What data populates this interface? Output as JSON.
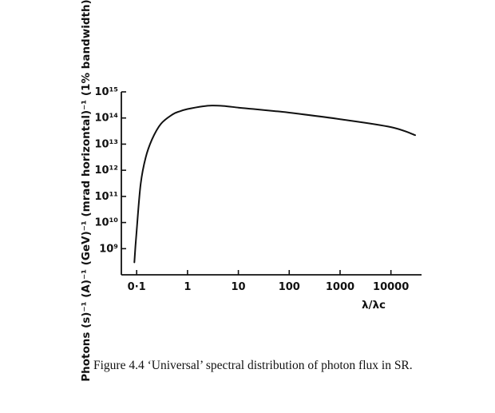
{
  "chart_data": {
    "type": "line",
    "title": "",
    "xlabel": "λ/λc",
    "ylabel": "Photons (s)⁻¹ (A)⁻¹ (GeV)⁻¹ (mrad horizontal)⁻¹ (1% bandwidth)⁻¹",
    "x_scale": "log",
    "y_scale": "log",
    "xlim": [
      0.05,
      40000
    ],
    "ylim": [
      100000000.0,
      1000000000000000.0
    ],
    "x_ticks": [
      {
        "value": 0.1,
        "label": "0·1"
      },
      {
        "value": 1,
        "label": "1"
      },
      {
        "value": 10,
        "label": "10"
      },
      {
        "value": 100,
        "label": "100"
      },
      {
        "value": 1000,
        "label": "1000"
      },
      {
        "value": 10000,
        "label": "10000"
      }
    ],
    "y_ticks": [
      {
        "value": 1000000000.0,
        "label": "10⁹"
      },
      {
        "value": 10000000000.0,
        "label": "10¹⁰"
      },
      {
        "value": 100000000000.0,
        "label": "10¹¹"
      },
      {
        "value": 1000000000000.0,
        "label": "10¹²"
      },
      {
        "value": 10000000000000.0,
        "label": "10¹³"
      },
      {
        "value": 100000000000000.0,
        "label": "10¹⁴"
      },
      {
        "value": 1000000000000000.0,
        "label": "10¹⁵"
      }
    ],
    "grid": false,
    "series": [
      {
        "color": "#111111",
        "x": [
          0.09,
          0.1,
          0.12,
          0.15,
          0.2,
          0.3,
          0.5,
          0.7,
          1,
          2,
          3,
          5,
          10,
          20,
          50,
          100,
          1000,
          10000,
          30000
        ],
        "y": [
          300000000.0,
          5000000000.0,
          300000000000.0,
          3000000000000.0,
          15000000000000.0,
          60000000000000.0,
          135000000000000.0,
          180000000000000.0,
          220000000000000.0,
          280000000000000.0,
          300000000000000.0,
          290000000000000.0,
          250000000000000.0,
          220000000000000.0,
          185000000000000.0,
          160000000000000.0,
          90000000000000.0,
          45000000000000.0,
          22000000000000.0
        ]
      }
    ]
  },
  "caption": "Figure 4.4  ‘Universal’ spectral distribution of photon flux in SR."
}
